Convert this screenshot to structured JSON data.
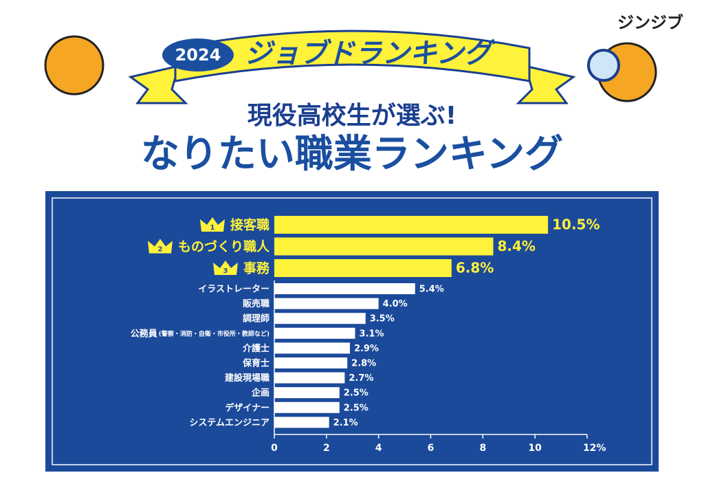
{
  "brand": "ジンジブ",
  "banner": {
    "year": "2024",
    "title": "ジョブドランキング"
  },
  "subtitle": "現役高校生が選ぶ!",
  "chart_data": {
    "type": "bar",
    "orientation": "horizontal",
    "title": "なりたい職業ランキング",
    "categories": [
      "接客職",
      "ものづくり職人",
      "事務",
      "イラストレーター",
      "販売職",
      "調理師",
      "公務員",
      "介護士",
      "保育士",
      "建設現場職",
      "企画",
      "デザイナー",
      "システムエンジニア"
    ],
    "category_notes": [
      null,
      null,
      null,
      null,
      null,
      null,
      "(警察・消防・自衛・市役所・教師など)",
      null,
      null,
      null,
      null,
      null,
      null
    ],
    "rank_badges": [
      "1",
      "2",
      "3"
    ],
    "values": [
      10.5,
      8.4,
      6.8,
      5.4,
      4.0,
      3.5,
      3.1,
      2.9,
      2.8,
      2.7,
      2.5,
      2.5,
      2.1
    ],
    "value_labels": [
      "10.5%",
      "8.4%",
      "6.8%",
      "5.4%",
      "4.0%",
      "3.5%",
      "3.1%",
      "2.9%",
      "2.8%",
      "2.7%",
      "2.5%",
      "2.5%",
      "2.1%"
    ],
    "highlight_color": "#fff23a",
    "color": "#ffffff",
    "xlim": [
      0,
      12
    ],
    "xticks": [
      0,
      2,
      4,
      6,
      8,
      10,
      {
        "value": 12,
        "label": "12%"
      }
    ],
    "grid": false
  }
}
